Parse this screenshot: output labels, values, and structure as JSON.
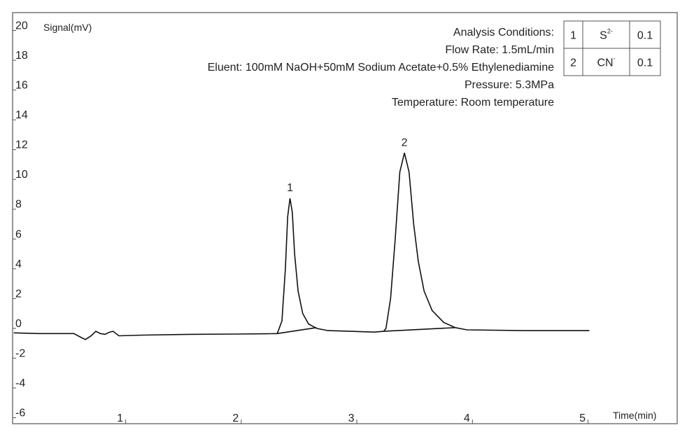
{
  "chart_data": {
    "type": "line",
    "ylabel": "Signal(mV)",
    "xlabel": "Time(min)",
    "xlim": [
      0.07,
      5.82
    ],
    "xticks": [
      1,
      2,
      3,
      4,
      5
    ],
    "ylim": [
      -6.4,
      21.2
    ],
    "yticks": [
      20,
      18,
      16,
      14,
      12,
      10,
      8,
      6,
      4,
      2,
      0,
      -2,
      -4,
      -6
    ],
    "grid": false,
    "series": [
      {
        "color": "#111111",
        "x": [
          0.08,
          0.3,
          0.6,
          0.66,
          0.7,
          0.75,
          0.79,
          0.83,
          0.87,
          0.91,
          0.94,
          0.99,
          1.2,
          1.6,
          2.0,
          2.3,
          2.36,
          2.4,
          2.43,
          2.45,
          2.47,
          2.49,
          2.51,
          2.54,
          2.58,
          2.63,
          2.7,
          2.8,
          3.0,
          3.2,
          3.28,
          3.3,
          3.34,
          3.38,
          3.42,
          3.46,
          3.5,
          3.54,
          3.58,
          3.63,
          3.7,
          3.8,
          3.9,
          4.0,
          4.5,
          5.06
        ],
        "values": [
          -0.3,
          -0.35,
          -0.35,
          -0.6,
          -0.75,
          -0.5,
          -0.2,
          -0.35,
          -0.4,
          -0.25,
          -0.2,
          -0.5,
          -0.45,
          -0.4,
          -0.38,
          -0.36,
          -0.35,
          0.5,
          4.0,
          7.5,
          8.73,
          7.8,
          5.0,
          2.5,
          1.0,
          0.3,
          0.0,
          -0.15,
          -0.2,
          -0.25,
          -0.2,
          0.0,
          2.0,
          6.0,
          10.5,
          11.78,
          10.5,
          7.0,
          4.5,
          2.5,
          1.2,
          0.4,
          0.05,
          -0.1,
          -0.15,
          -0.15
        ]
      },
      {
        "color": "#111111",
        "x": [
          2.36,
          2.7,
          null,
          3.28,
          3.9
        ],
        "values": [
          -0.35,
          0.05,
          null,
          -0.2,
          0.05
        ]
      }
    ],
    "annotations": [
      {
        "text": "1",
        "x": 2.47,
        "y": 8.73
      },
      {
        "text": "2",
        "x": 3.46,
        "y": 11.78
      }
    ],
    "conditions": [
      "Analysis Conditions:",
      "Flow Rate: 1.5mL/min",
      "Eluent: 100mM NaOH+50mM Sodium Acetate+0.5% Ethylenediamine",
      "Pressure: 5.3MPa",
      "Temperature: Room temperature"
    ],
    "table": {
      "rows": [
        [
          {
            "text": "1"
          },
          {
            "text": "S",
            "sup": "2-"
          },
          {
            "text": "0.1"
          }
        ],
        [
          {
            "text": "2"
          },
          {
            "text": "CN",
            "sup": "-"
          },
          {
            "text": "0.1"
          }
        ]
      ]
    }
  }
}
